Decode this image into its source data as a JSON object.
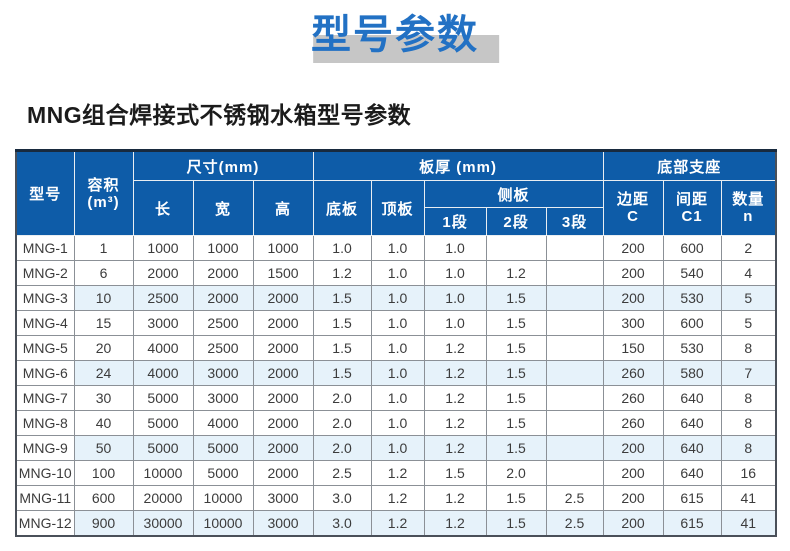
{
  "page": {
    "title": "型号参数",
    "subtitle": "MNG组合焊接式不锈钢水箱型号参数"
  },
  "colors": {
    "title_blue": "#2271c4",
    "title_shadow_gray": "#c6c6c6",
    "header_blue": "#0e5ca8",
    "stripe_light_blue": "#e6f2fa",
    "grid_gray": "#8b9096",
    "outer_border_dark": "#182a3e"
  },
  "table": {
    "header": {
      "model": "型号",
      "volume_line1": "容积",
      "volume_line2": "(m³)",
      "dimensions": "尺寸(mm)",
      "length": "长",
      "width": "宽",
      "height": "高",
      "thickness": "板厚 (mm)",
      "bottom_plate": "底板",
      "top_plate": "顶板",
      "side_plate": "侧板",
      "seg1": "1段",
      "seg2": "2段",
      "seg3": "3段",
      "support": "底部支座",
      "edge_line1": "边距",
      "edge_line2": "C",
      "spacing_line1": "间距",
      "spacing_line2": "C1",
      "qty_line1": "数量",
      "qty_line2": "n"
    },
    "rows": [
      [
        "MNG-1",
        "1",
        "1000",
        "1000",
        "1000",
        "1.0",
        "1.0",
        "1.0",
        "",
        "",
        "200",
        "600",
        "2"
      ],
      [
        "MNG-2",
        "6",
        "2000",
        "2000",
        "1500",
        "1.2",
        "1.0",
        "1.0",
        "1.2",
        "",
        "200",
        "540",
        "4"
      ],
      [
        "MNG-3",
        "10",
        "2500",
        "2000",
        "2000",
        "1.5",
        "1.0",
        "1.0",
        "1.5",
        "",
        "200",
        "530",
        "5"
      ],
      [
        "MNG-4",
        "15",
        "3000",
        "2500",
        "2000",
        "1.5",
        "1.0",
        "1.0",
        "1.5",
        "",
        "300",
        "600",
        "5"
      ],
      [
        "MNG-5",
        "20",
        "4000",
        "2500",
        "2000",
        "1.5",
        "1.0",
        "1.2",
        "1.5",
        "",
        "150",
        "530",
        "8"
      ],
      [
        "MNG-6",
        "24",
        "4000",
        "3000",
        "2000",
        "1.5",
        "1.0",
        "1.2",
        "1.5",
        "",
        "260",
        "580",
        "7"
      ],
      [
        "MNG-7",
        "30",
        "5000",
        "3000",
        "2000",
        "2.0",
        "1.0",
        "1.2",
        "1.5",
        "",
        "260",
        "640",
        "8"
      ],
      [
        "MNG-8",
        "40",
        "5000",
        "4000",
        "2000",
        "2.0",
        "1.0",
        "1.2",
        "1.5",
        "",
        "260",
        "640",
        "8"
      ],
      [
        "MNG-9",
        "50",
        "5000",
        "5000",
        "2000",
        "2.0",
        "1.0",
        "1.2",
        "1.5",
        "",
        "200",
        "640",
        "8"
      ],
      [
        "MNG-10",
        "100",
        "10000",
        "5000",
        "2000",
        "2.5",
        "1.2",
        "1.5",
        "2.0",
        "",
        "200",
        "640",
        "16"
      ],
      [
        "MNG-11",
        "600",
        "20000",
        "10000",
        "3000",
        "3.0",
        "1.2",
        "1.2",
        "1.5",
        "2.5",
        "200",
        "615",
        "41"
      ],
      [
        "MNG-12",
        "900",
        "30000",
        "10000",
        "3000",
        "3.0",
        "1.2",
        "1.2",
        "1.5",
        "2.5",
        "200",
        "615",
        "41"
      ]
    ]
  }
}
